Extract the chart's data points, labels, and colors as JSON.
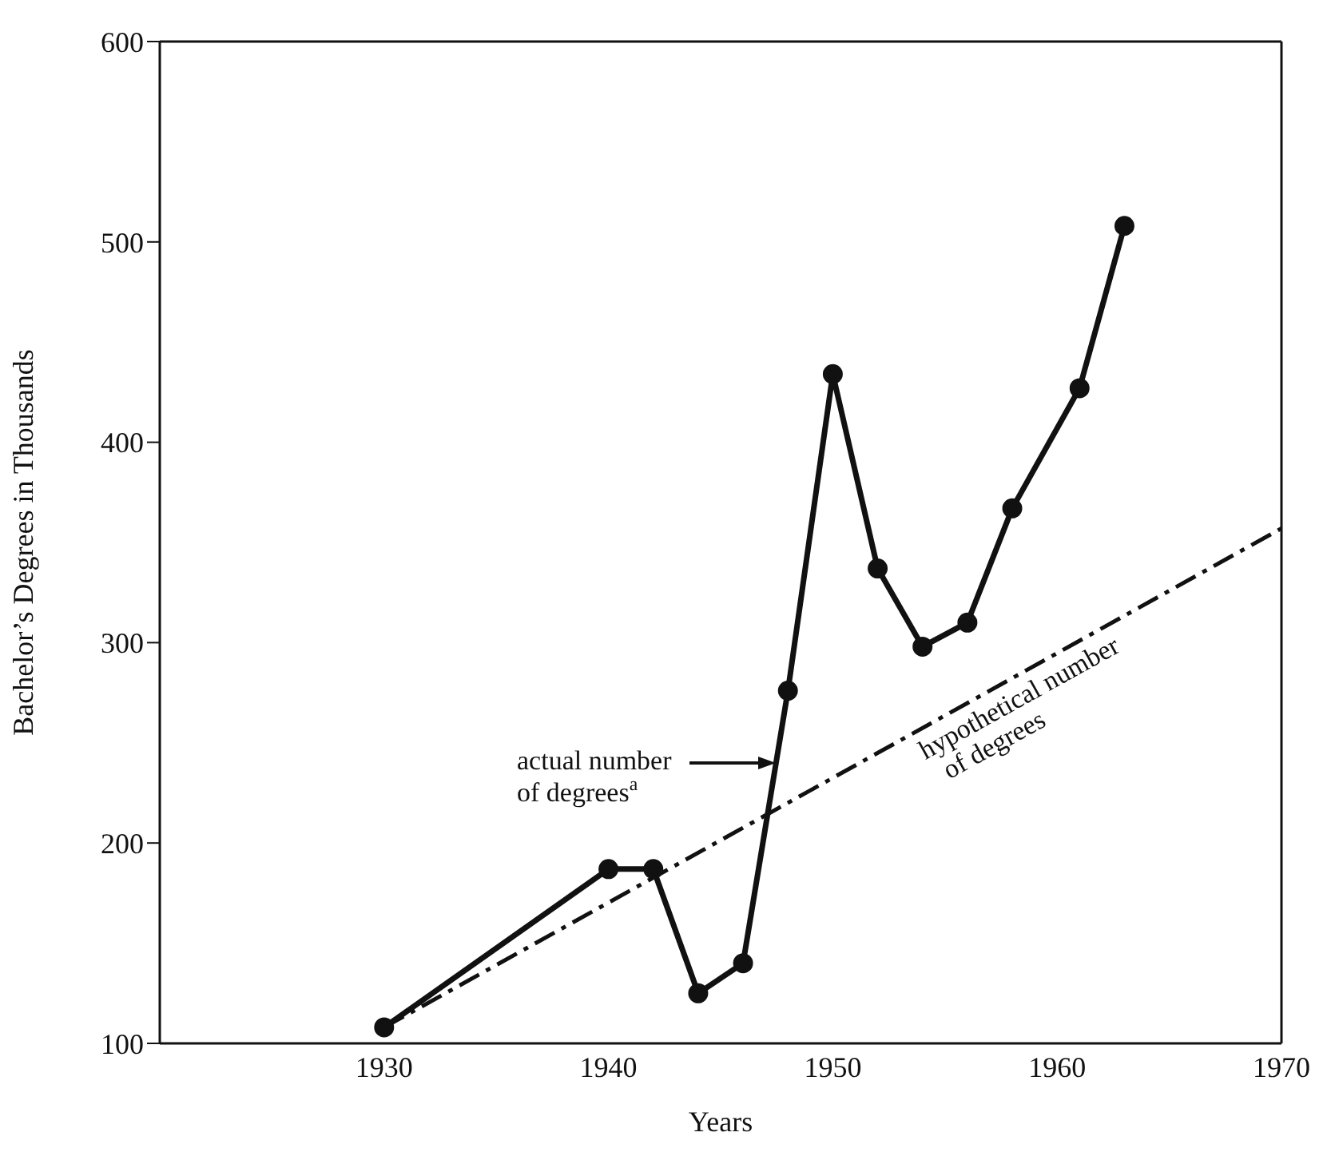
{
  "chart_data": {
    "type": "line",
    "xlabel": "Years",
    "ylabel": "Bachelor’s Degrees in Thousands",
    "xlim": [
      1920,
      1970
    ],
    "xticks": [
      1930,
      1940,
      1950,
      1960,
      1970
    ],
    "ylim": [
      100,
      600
    ],
    "yticks": [
      100,
      200,
      300,
      400,
      500,
      600
    ],
    "marker": "circle",
    "series": [
      {
        "color": "#111111",
        "line_style": "solid",
        "x": [
          1930,
          1940,
          1942,
          1944,
          1946,
          1948,
          1950,
          1952,
          1954,
          1956,
          1958,
          1961,
          1963
        ],
        "values": [
          108,
          187,
          187,
          125,
          140,
          276,
          434,
          337,
          298,
          310,
          367,
          427,
          508
        ]
      },
      {
        "color": "#111111",
        "line_style": "dashed",
        "marker": "none",
        "x": [
          1930,
          1970
        ],
        "values": [
          108,
          357
        ]
      }
    ],
    "annotations": [
      "actual number of degrees$^{a}$",
      {
        "text": "hypothetical number of degrees",
        "x": 1958,
        "y": 282
      }
    ]
  }
}
